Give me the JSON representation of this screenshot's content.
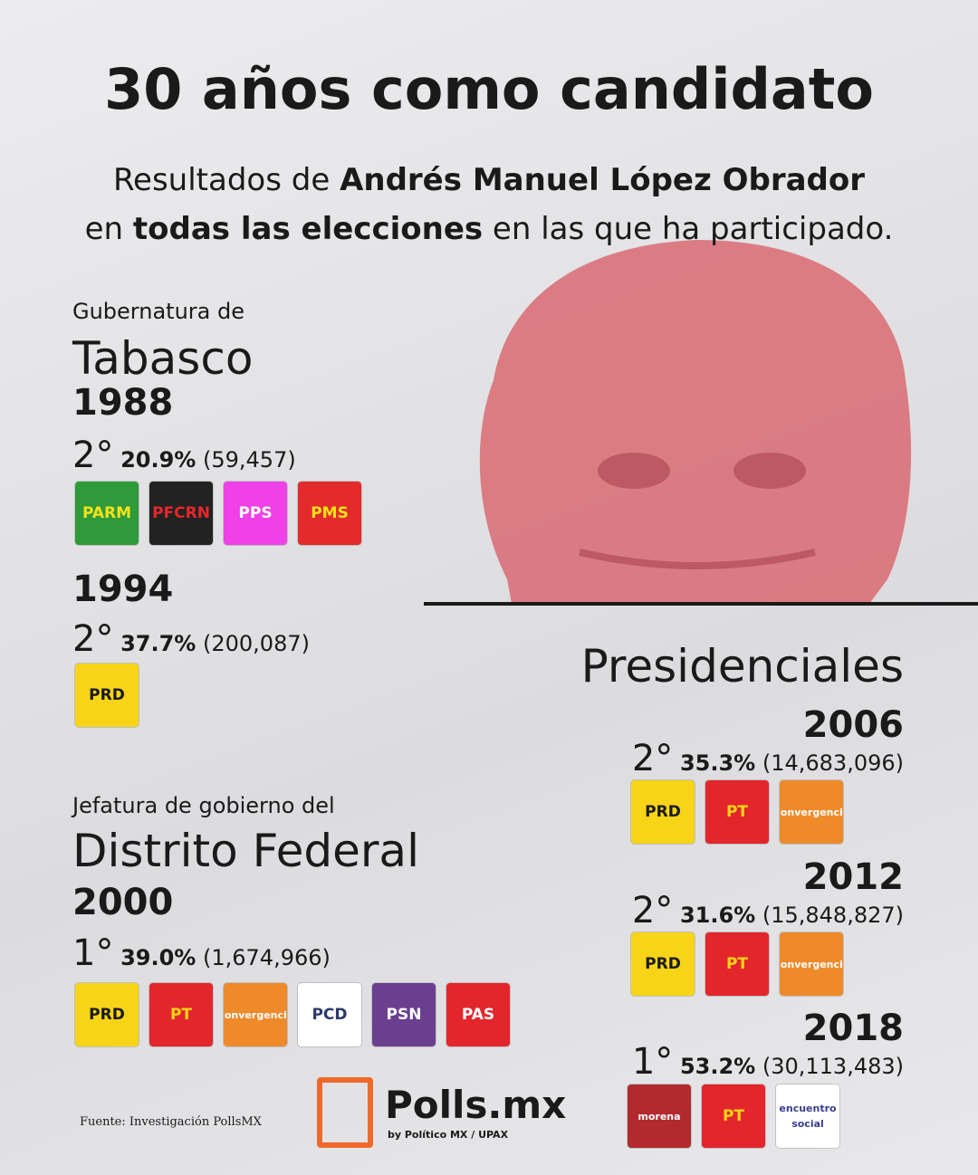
{
  "header": {
    "title": "30 años como candidato",
    "subtitle": [
      [
        "Resultados de ",
        false
      ],
      [
        "Andrés Manuel López Obrador",
        true
      ],
      [
        "en ",
        false
      ],
      [
        "todas las elecciones",
        true
      ],
      [
        " en las que ha participado.",
        false
      ]
    ]
  },
  "sections": [
    {
      "kicker": "Gubernatura de",
      "name": "Tabasco",
      "elections": [
        {
          "year": "1988",
          "place": "2°",
          "pct": "20.9%",
          "votes": "(59,457)",
          "parties": [
            {
              "label": "PARM",
              "color": "#2e9a3a",
              "text_color": "#f5e21a"
            },
            {
              "label": "PFCRN",
              "color": "#222222",
              "text_color": "#e8262b"
            },
            {
              "label": "PPS",
              "color": "#f040e8",
              "text_color": "#ffffff"
            },
            {
              "label": "PMS",
              "color": "#e32b2b",
              "text_color": "#f5e21a"
            }
          ]
        },
        {
          "year": "1994",
          "place": "2°",
          "pct": "37.7%",
          "votes": "(200,087)",
          "parties": [
            {
              "label": "PRD",
              "color": "#f7d417",
              "text_color": "#1a1a1a"
            }
          ]
        }
      ]
    },
    {
      "kicker": "Jefatura de gobierno del",
      "name": "Distrito Federal",
      "elections": [
        {
          "year": "2000",
          "place": "1°",
          "pct": "39.0%",
          "votes": "(1,674,966)",
          "parties": [
            {
              "label": "PRD",
              "color": "#f7d417",
              "text_color": "#1a1a1a"
            },
            {
              "label": "PT",
              "color": "#e3262c",
              "text_color": "#f7d417"
            },
            {
              "label": "Convergencia",
              "color": "#ef8a2a",
              "text_color": "#ffffff"
            },
            {
              "label": "PCD",
              "color": "#ffffff",
              "text_color": "#2a3a6a"
            },
            {
              "label": "PSN",
              "color": "#6b3f8e",
              "text_color": "#ffffff"
            },
            {
              "label": "PAS",
              "color": "#e3262c",
              "text_color": "#ffffff"
            }
          ]
        }
      ]
    },
    {
      "kicker": null,
      "name": "Presidenciales",
      "elections": [
        {
          "year": "2006",
          "place": "2°",
          "pct": "35.3%",
          "votes": "(14,683,096)",
          "parties": [
            {
              "label": "PRD",
              "color": "#f7d417",
              "text_color": "#1a1a1a"
            },
            {
              "label": "PT",
              "color": "#e3262c",
              "text_color": "#f7d417"
            },
            {
              "label": "Convergencia",
              "color": "#ef8a2a",
              "text_color": "#ffffff"
            }
          ]
        },
        {
          "year": "2012",
          "place": "2°",
          "pct": "31.6%",
          "votes": "(15,848,827)",
          "parties": [
            {
              "label": "PRD",
              "color": "#f7d417",
              "text_color": "#1a1a1a"
            },
            {
              "label": "PT",
              "color": "#e3262c",
              "text_color": "#f7d417"
            },
            {
              "label": "Convergencia",
              "color": "#ef8a2a",
              "text_color": "#ffffff"
            }
          ]
        },
        {
          "year": "2018",
          "place": "1°",
          "pct": "53.2%",
          "votes": "(30,113,483)",
          "parties": [
            {
              "label": "morena",
              "color": "#b22a2e",
              "text_color": "#ffffff"
            },
            {
              "label": "PT",
              "color": "#e3262c",
              "text_color": "#f7d417"
            },
            {
              "label": "encuentro social",
              "color": "#ffffff",
              "text_color": "#3a3f8f"
            }
          ]
        }
      ]
    }
  ],
  "footer": {
    "source": "Fuente: Investigación PollsMX",
    "brand": "Polls.mx",
    "brand_sub": "by Político MX / UPAX"
  }
}
